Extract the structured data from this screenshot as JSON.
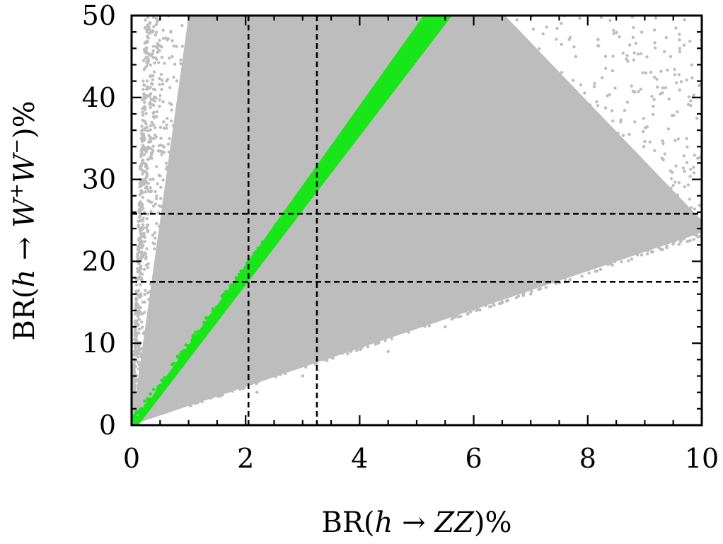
{
  "chart_data": {
    "type": "scatter",
    "xlabel_parts": {
      "pre": "BR(",
      "var1": "h",
      "arrow": " → ",
      "var2": "ZZ",
      "post": ")%"
    },
    "ylabel_parts": {
      "pre": "BR(",
      "var1": "h",
      "arrow": " → ",
      "var2": "W",
      "sup1": "+",
      "var3": "W",
      "sup2": "−",
      "post": ")%"
    },
    "xlim": [
      0,
      10
    ],
    "ylim": [
      0,
      50
    ],
    "x_ticks": [
      0,
      2,
      4,
      6,
      8,
      10
    ],
    "y_ticks": [
      0,
      10,
      20,
      30,
      40,
      50
    ],
    "x_tick_labels": [
      "0",
      "2",
      "4",
      "6",
      "8",
      "10"
    ],
    "y_tick_labels": [
      "0",
      "10",
      "20",
      "30",
      "40",
      "50"
    ],
    "grid": false,
    "reference_lines": {
      "vertical": [
        2.05,
        3.25
      ],
      "horizontal": [
        17.5,
        25.8
      ]
    },
    "series_colors": {
      "all_points": "#bdbdbd",
      "selected_points": "#19e619"
    },
    "regions": {
      "gray_wedge_vertices": [
        [
          0,
          0
        ],
        [
          1.0,
          50
        ],
        [
          6.55,
          50
        ],
        [
          10,
          25
        ],
        [
          10,
          23.5
        ]
      ],
      "green_band_vertices": [
        [
          0,
          0
        ],
        [
          5.12,
          50
        ],
        [
          5.62,
          50
        ],
        [
          0.12,
          0
        ]
      ],
      "upper_edge_spread": [
        [
          0.3,
          22
        ],
        [
          0.6,
          35
        ],
        [
          0.9,
          47
        ],
        [
          1.3,
          48
        ],
        [
          0.4,
          12
        ]
      ],
      "lower_tail_points": [
        [
          2.2,
          4
        ],
        [
          3.0,
          6
        ],
        [
          4.5,
          9
        ],
        [
          5.5,
          12
        ],
        [
          7.0,
          16
        ],
        [
          8.0,
          19
        ],
        [
          9.0,
          22
        ]
      ]
    }
  }
}
